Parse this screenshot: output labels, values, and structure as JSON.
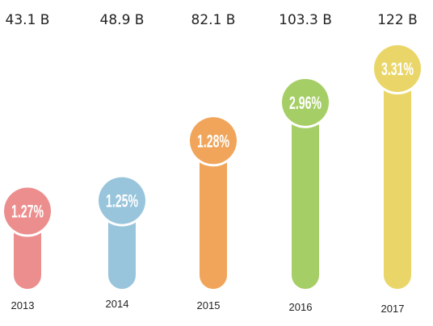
{
  "chart_data": {
    "type": "bar",
    "categories": [
      "2013",
      "2014",
      "2015",
      "2016",
      "2017"
    ],
    "series": [
      {
        "values": [
          43.1,
          48.9,
          82.1,
          103.3,
          122
        ],
        "labels": [
          "43.1 B",
          "48.9 B",
          "82.1 B",
          "103.3 B",
          "122 B"
        ]
      },
      {
        "values": [
          1.27,
          1.25,
          1.28,
          2.96,
          3.31
        ],
        "labels": [
          "1.27%",
          "1.25%",
          "1.28%",
          "2.96%",
          "3.31%"
        ]
      }
    ],
    "colors": [
      "#ec8e8e",
      "#98c5dc",
      "#f0a55a",
      "#a6ce66",
      "#ead668"
    ],
    "ylim": [
      0,
      122
    ]
  }
}
